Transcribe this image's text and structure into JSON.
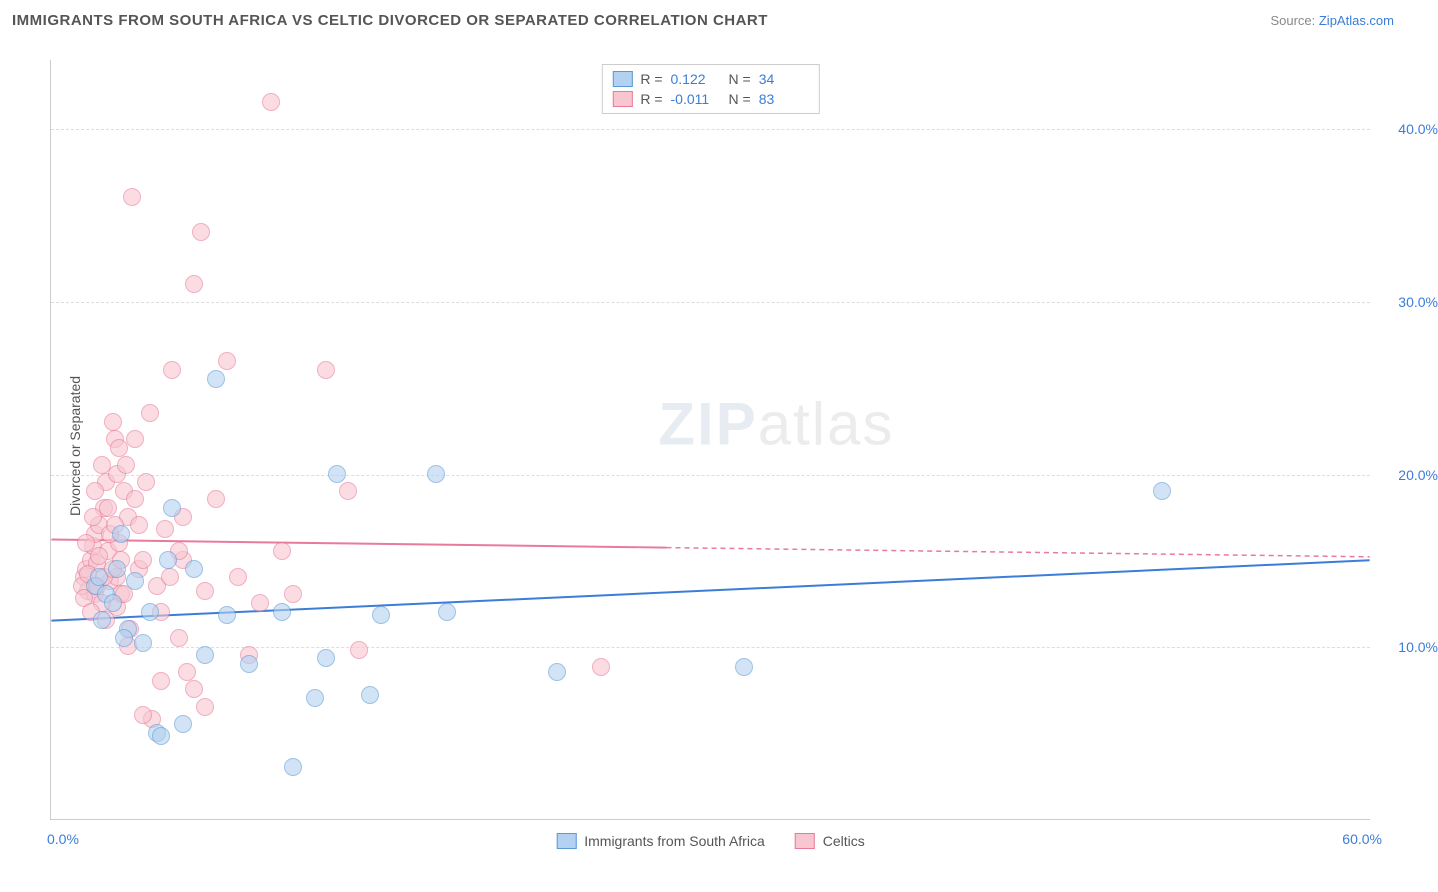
{
  "title": "IMMIGRANTS FROM SOUTH AFRICA VS CELTIC DIVORCED OR SEPARATED CORRELATION CHART",
  "source_label": "Source: ",
  "source_name": "ZipAtlas.com",
  "watermark_zip": "ZIP",
  "watermark_atlas": "atlas",
  "ylabel": "Divorced or Separated",
  "colors": {
    "blue_fill": "#b3d1f0",
    "blue_stroke": "#5b9bd5",
    "pink_fill": "#f7c6d0",
    "pink_stroke": "#e87a9a",
    "axis_text": "#3b7dd8",
    "grid": "#dddddd",
    "line_blue": "#3b7dd8",
    "line_pink": "#e87a9a"
  },
  "chart": {
    "type": "scatter",
    "xlim": [
      0,
      60
    ],
    "ylim": [
      0,
      44
    ],
    "ytick_values": [
      10,
      20,
      30,
      40
    ],
    "ytick_labels": [
      "10.0%",
      "20.0%",
      "30.0%",
      "40.0%"
    ],
    "xtick_left": "0.0%",
    "xtick_right": "60.0%",
    "blue_line": {
      "x1": 0,
      "y1": 11.5,
      "x2": 60,
      "y2": 15.0,
      "solid_until_x": 60
    },
    "pink_line": {
      "x1": 0,
      "y1": 16.2,
      "x2": 60,
      "y2": 15.2,
      "solid_until_x": 28
    }
  },
  "legend_top": {
    "rows": [
      {
        "r_label": "R =",
        "r_value": "0.122",
        "n_label": "N =",
        "n_value": "34",
        "color": "blue"
      },
      {
        "r_label": "R =",
        "r_value": "-0.011",
        "n_label": "N =",
        "n_value": "83",
        "color": "pink"
      }
    ]
  },
  "legend_bottom": {
    "items": [
      {
        "label": "Immigrants from South Africa",
        "color": "blue"
      },
      {
        "label": "Celtics",
        "color": "pink"
      }
    ]
  },
  "series": {
    "blue": [
      [
        2.0,
        13.5
      ],
      [
        2.2,
        14.0
      ],
      [
        2.5,
        13.0
      ],
      [
        2.8,
        12.5
      ],
      [
        3.0,
        14.5
      ],
      [
        3.2,
        16.5
      ],
      [
        3.5,
        11.0
      ],
      [
        3.8,
        13.8
      ],
      [
        4.2,
        10.2
      ],
      [
        4.5,
        12.0
      ],
      [
        4.8,
        5.0
      ],
      [
        5.0,
        4.8
      ],
      [
        5.3,
        15.0
      ],
      [
        5.5,
        18.0
      ],
      [
        6.0,
        5.5
      ],
      [
        6.5,
        14.5
      ],
      [
        7.0,
        9.5
      ],
      [
        7.5,
        25.5
      ],
      [
        8.0,
        11.8
      ],
      [
        9.0,
        9.0
      ],
      [
        10.5,
        12.0
      ],
      [
        11.0,
        3.0
      ],
      [
        12.0,
        7.0
      ],
      [
        12.5,
        9.3
      ],
      [
        13.0,
        20.0
      ],
      [
        14.5,
        7.2
      ],
      [
        15.0,
        11.8
      ],
      [
        17.5,
        20.0
      ],
      [
        18.0,
        12.0
      ],
      [
        23.0,
        8.5
      ],
      [
        31.5,
        8.8
      ],
      [
        50.5,
        19.0
      ],
      [
        2.3,
        11.5
      ],
      [
        3.3,
        10.5
      ]
    ],
    "pink": [
      [
        1.5,
        14.0
      ],
      [
        1.6,
        14.5
      ],
      [
        1.7,
        13.2
      ],
      [
        1.8,
        15.0
      ],
      [
        1.9,
        15.8
      ],
      [
        2.0,
        13.0
      ],
      [
        2.0,
        16.5
      ],
      [
        2.1,
        14.8
      ],
      [
        2.2,
        17.0
      ],
      [
        2.3,
        12.5
      ],
      [
        2.4,
        18.0
      ],
      [
        2.5,
        19.5
      ],
      [
        2.6,
        15.5
      ],
      [
        2.7,
        13.8
      ],
      [
        2.8,
        23.0
      ],
      [
        2.9,
        22.0
      ],
      [
        3.0,
        20.0
      ],
      [
        3.0,
        14.0
      ],
      [
        3.1,
        16.0
      ],
      [
        3.2,
        13.0
      ],
      [
        3.3,
        19.0
      ],
      [
        3.4,
        20.5
      ],
      [
        3.5,
        17.5
      ],
      [
        3.6,
        11.0
      ],
      [
        3.7,
        36.0
      ],
      [
        3.8,
        18.5
      ],
      [
        4.0,
        14.5
      ],
      [
        4.2,
        15.0
      ],
      [
        4.5,
        23.5
      ],
      [
        4.8,
        13.5
      ],
      [
        5.0,
        8.0
      ],
      [
        5.2,
        16.8
      ],
      [
        5.5,
        26.0
      ],
      [
        5.8,
        10.5
      ],
      [
        6.0,
        15.0
      ],
      [
        6.2,
        8.5
      ],
      [
        6.5,
        31.0
      ],
      [
        6.8,
        34.0
      ],
      [
        7.0,
        13.2
      ],
      [
        7.5,
        18.5
      ],
      [
        8.0,
        26.5
      ],
      [
        8.5,
        14.0
      ],
      [
        9.0,
        9.5
      ],
      [
        9.5,
        12.5
      ],
      [
        10.0,
        41.5
      ],
      [
        10.5,
        15.5
      ],
      [
        11.0,
        13.0
      ],
      [
        12.5,
        26.0
      ],
      [
        13.5,
        19.0
      ],
      [
        14.0,
        9.8
      ],
      [
        25.0,
        8.8
      ],
      [
        1.4,
        13.5
      ],
      [
        1.5,
        12.8
      ],
      [
        1.6,
        16.0
      ],
      [
        1.7,
        14.2
      ],
      [
        1.8,
        12.0
      ],
      [
        1.9,
        17.5
      ],
      [
        2.0,
        19.0
      ],
      [
        2.1,
        13.5
      ],
      [
        2.2,
        15.2
      ],
      [
        2.3,
        20.5
      ],
      [
        2.4,
        14.0
      ],
      [
        2.5,
        11.5
      ],
      [
        2.6,
        18.0
      ],
      [
        2.7,
        16.5
      ],
      [
        2.8,
        14.5
      ],
      [
        2.9,
        17.0
      ],
      [
        3.0,
        12.3
      ],
      [
        3.1,
        21.5
      ],
      [
        3.2,
        15.0
      ],
      [
        3.3,
        13.0
      ],
      [
        3.5,
        10.0
      ],
      [
        3.8,
        22.0
      ],
      [
        4.0,
        17.0
      ],
      [
        4.3,
        19.5
      ],
      [
        4.6,
        5.8
      ],
      [
        5.0,
        12.0
      ],
      [
        5.4,
        14.0
      ],
      [
        6.0,
        17.5
      ],
      [
        6.5,
        7.5
      ],
      [
        7.0,
        6.5
      ],
      [
        4.2,
        6.0
      ],
      [
        5.8,
        15.5
      ]
    ]
  }
}
